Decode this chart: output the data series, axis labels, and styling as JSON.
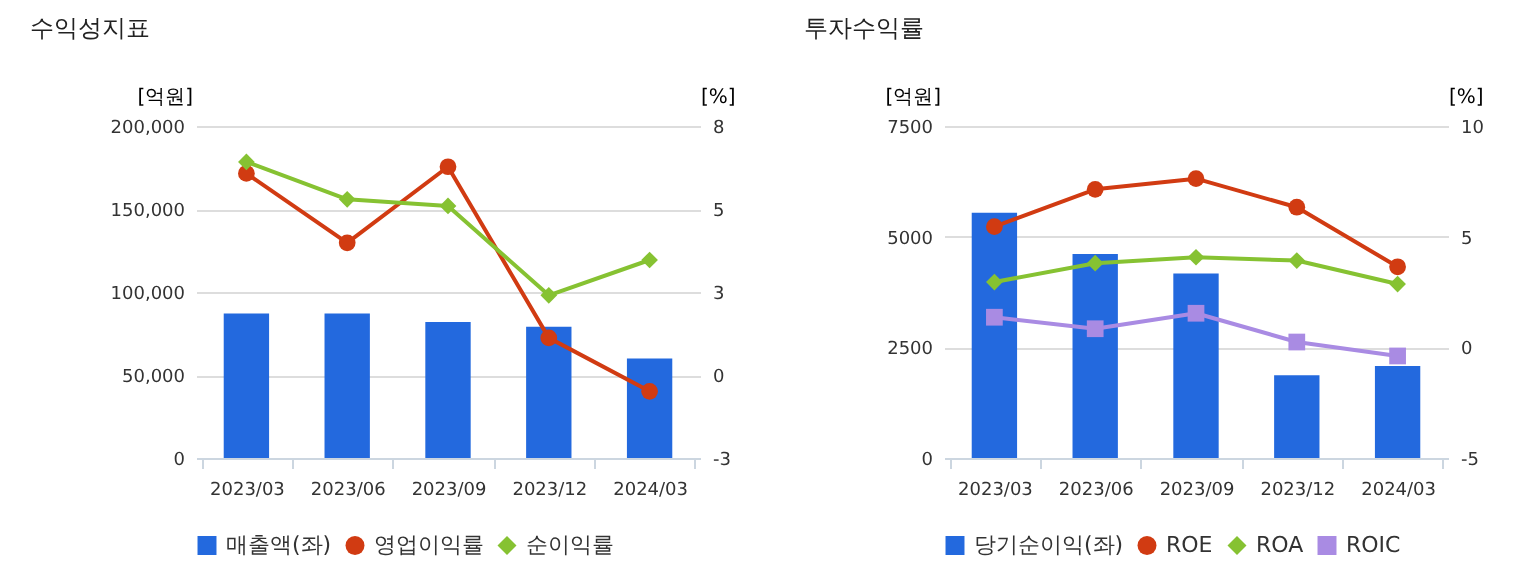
{
  "chart_data": [
    {
      "type": "bar",
      "title": "수익성지표",
      "ylabel": "[억원]",
      "y2label": "[%]",
      "categories": [
        "2023/03",
        "2023/06",
        "2023/09",
        "2023/12",
        "2024/03"
      ],
      "series": [
        {
          "name": "매출액(좌)",
          "color": "#2369de",
          "values": [
            87000,
            87000,
            82000,
            79000,
            60000
          ]
        },
        {
          "name": "영업이익률",
          "type": "line",
          "axis": "y2",
          "marker": "circle",
          "color": "#d13b12",
          "values": [
            6.43,
            4.13,
            6.65,
            0.98,
            -0.79
          ]
        },
        {
          "name": "순이익률",
          "type": "line",
          "axis": "y2",
          "marker": "diamond",
          "color": "#86c232",
          "values": [
            6.81,
            5.57,
            5.35,
            2.39,
            3.56
          ]
        }
      ],
      "ylim": [
        0,
        200000
      ],
      "yticks": [
        {
          "value": 0,
          "label": "0"
        },
        {
          "value": 50000,
          "label": "50,000"
        },
        {
          "value": 100000,
          "label": "100,000"
        },
        {
          "value": 150000,
          "label": "150,000"
        },
        {
          "value": 200000,
          "label": "200,000"
        }
      ],
      "y2lim": [
        -3,
        8
      ],
      "y2ticks": [
        -3,
        {
          "value": -0.25,
          "label": "0"
        },
        {
          "value": 2.5,
          "label": "3"
        },
        {
          "value": 5.25,
          "label": "5"
        },
        8
      ],
      "grid": "y",
      "legend": "bottom"
    },
    {
      "type": "bar",
      "title": "투자수익률",
      "ylabel": "[억원]",
      "y2label": "[%]",
      "categories": [
        "2023/03",
        "2023/06",
        "2023/09",
        "2023/12",
        "2024/03"
      ],
      "series": [
        {
          "name": "당기순이익(좌)",
          "color": "#2369de",
          "values": [
            5540,
            4610,
            4170,
            1870,
            2080
          ]
        },
        {
          "name": "ROE",
          "type": "line",
          "axis": "y2",
          "marker": "circle",
          "color": "#d13b12",
          "values": [
            5.45,
            7.14,
            7.62,
            6.33,
            3.64
          ]
        },
        {
          "name": "ROA",
          "type": "line",
          "axis": "y2",
          "marker": "diamond",
          "color": "#86c232",
          "values": [
            2.95,
            3.8,
            4.07,
            3.92,
            2.86
          ]
        },
        {
          "name": "ROIC",
          "type": "line",
          "axis": "y2",
          "marker": "square",
          "color": "#a98be3",
          "values": [
            1.36,
            0.84,
            1.54,
            0.24,
            -0.39
          ]
        }
      ],
      "ylim": [
        0,
        7500
      ],
      "yticks": [
        0,
        2500,
        5000,
        7500
      ],
      "y2lim": [
        -5,
        10
      ],
      "y2ticks": [
        -5,
        0,
        5,
        10
      ],
      "grid": "y",
      "legend": "bottom"
    }
  ]
}
